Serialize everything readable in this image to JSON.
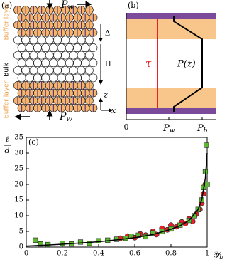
{
  "panel_a": {
    "label": "(a)",
    "top_force": {
      "main": "P",
      "sub": "w"
    },
    "bottom_force": {
      "main": "P",
      "sub": "w"
    },
    "top_layer": "Buffer layer",
    "bulk": "Bulk",
    "bottom_layer": "Buffer layer",
    "delta": "Δ",
    "height": "H",
    "axis_z": "z",
    "axis_x": "x"
  },
  "panel_b": {
    "label": "(b)",
    "stress": "τ",
    "pressure": "P(z)",
    "origin": "0",
    "tick_wall": {
      "main": "P",
      "sub": "w"
    },
    "tick_bulk": {
      "main": "P",
      "sub": "b"
    }
  },
  "chart_data": {
    "type": "scatter",
    "panel_label": "(c)",
    "y_label": {
      "numerator": "ℓ",
      "denominator": "d"
    },
    "x_label": {
      "main": "𝒴",
      "sub": "b"
    },
    "xlim": [
      0,
      1
    ],
    "ylim": [
      0,
      35
    ],
    "xticks": [
      0,
      0.2,
      0.4,
      0.6,
      0.8,
      1
    ],
    "yticks": [
      0,
      5,
      10,
      15,
      20,
      25,
      30,
      35
    ],
    "series": [
      {
        "color": "#e8202a",
        "marker": "circle",
        "x": [
          0.52,
          0.56,
          0.6,
          0.63,
          0.66,
          0.7,
          0.72,
          0.75,
          0.78,
          0.8,
          0.83,
          0.86,
          0.88,
          0.9,
          0.92,
          0.94,
          0.96,
          0.97,
          0.98,
          0.99
        ],
        "values": [
          2.8,
          3.5,
          3.0,
          4.2,
          3.8,
          5.0,
          4.0,
          6.0,
          5.5,
          7.0,
          6.5,
          8.0,
          7.5,
          9.0,
          8.2,
          10.5,
          12,
          14,
          17,
          20
        ]
      },
      {
        "color": "#5cb82e",
        "marker": "square",
        "x": [
          0.05,
          0.08,
          0.12,
          0.2,
          0.25,
          0.3,
          0.35,
          0.4,
          0.45,
          0.5,
          0.55,
          0.58,
          0.62,
          0.66,
          0.7,
          0.75,
          0.8,
          0.85,
          0.9,
          0.93,
          0.95,
          0.97,
          0.98,
          0.99,
          0.995,
          1.0
        ],
        "values": [
          2.2,
          1.0,
          0.8,
          1.2,
          1.0,
          1.6,
          1.2,
          2.0,
          2.2,
          2.5,
          2.8,
          3.5,
          3.8,
          3.3,
          4.5,
          5.0,
          5.8,
          7.0,
          8.5,
          10,
          12,
          15,
          19,
          24,
          32.5,
          20
        ]
      },
      {
        "color": "#000000",
        "marker": "line",
        "x": [
          0,
          0.1,
          0.2,
          0.3,
          0.4,
          0.5,
          0.6,
          0.7,
          0.8,
          0.85,
          0.9,
          0.95,
          0.97,
          0.99,
          1.0
        ],
        "values": [
          0.3,
          0.6,
          0.9,
          1.3,
          1.7,
          2.3,
          3.0,
          4.0,
          5.7,
          6.8,
          8.5,
          12,
          15,
          22,
          30
        ]
      }
    ]
  }
}
